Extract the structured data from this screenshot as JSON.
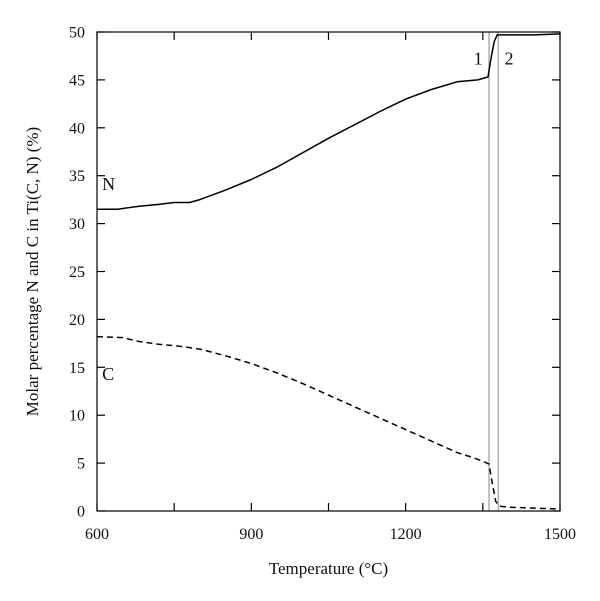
{
  "chart_data": {
    "type": "line",
    "title": "",
    "xlabel": "Temperature (°C)",
    "ylabel": "Molar percentage N and C in Ti(C, N) (%)",
    "xlim": [
      600,
      1500
    ],
    "ylim": [
      0,
      50
    ],
    "x_ticks": [
      600,
      900,
      1200,
      1500
    ],
    "x_minor_ticks": [
      750,
      1050,
      1350
    ],
    "y_ticks": [
      0,
      5,
      10,
      15,
      20,
      25,
      30,
      35,
      40,
      45,
      50
    ],
    "grid": false,
    "legend": "none",
    "series": [
      {
        "label": "N",
        "style": "solid",
        "color": "#000000",
        "x": [
          600,
          640,
          680,
          720,
          750,
          780,
          800,
          850,
          900,
          950,
          1000,
          1050,
          1100,
          1150,
          1200,
          1250,
          1300,
          1340,
          1360,
          1365,
          1372,
          1378,
          1385,
          1400,
          1450,
          1500
        ],
        "y": [
          31.5,
          31.5,
          31.8,
          32.0,
          32.2,
          32.2,
          32.5,
          33.5,
          34.6,
          35.9,
          37.4,
          38.9,
          40.3,
          41.7,
          43.0,
          44.0,
          44.8,
          45.0,
          45.3,
          47.0,
          49.0,
          49.7,
          49.7,
          49.7,
          49.7,
          49.8
        ]
      },
      {
        "label": "C",
        "style": "dashed",
        "color": "#000000",
        "x": [
          600,
          650,
          680,
          720,
          760,
          800,
          850,
          900,
          950,
          1000,
          1050,
          1100,
          1150,
          1200,
          1250,
          1300,
          1330,
          1350,
          1362,
          1368,
          1375,
          1382,
          1400,
          1450,
          1500
        ],
        "y": [
          18.2,
          18.1,
          17.7,
          17.4,
          17.2,
          16.9,
          16.2,
          15.4,
          14.4,
          13.3,
          12.1,
          10.9,
          9.7,
          8.5,
          7.3,
          6.1,
          5.6,
          5.2,
          4.9,
          3.0,
          1.0,
          0.5,
          0.4,
          0.3,
          0.2
        ]
      }
    ],
    "vertical_lines": [
      {
        "x": 1362,
        "color": "#aaaaaa"
      },
      {
        "x": 1380,
        "color": "#aaaaaa"
      }
    ],
    "annotations": [
      {
        "text": "N",
        "x": 610,
        "y": 33.5
      },
      {
        "text": "C",
        "x": 610,
        "y": 13.7
      },
      {
        "text": "1",
        "x": 1332,
        "y": 46.6
      },
      {
        "text": "2",
        "x": 1392,
        "y": 46.6
      }
    ]
  }
}
